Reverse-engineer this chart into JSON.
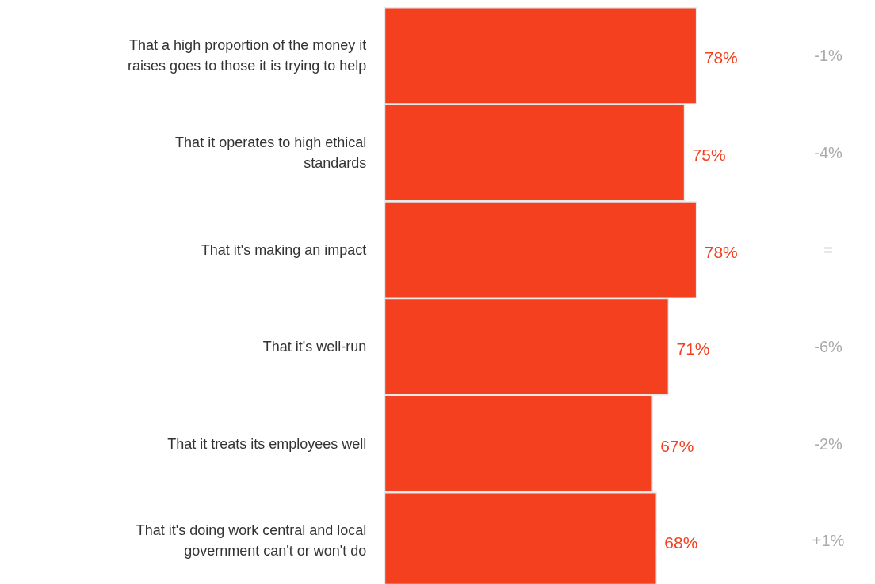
{
  "chart_data": {
    "type": "bar",
    "orientation": "horizontal",
    "categories": [
      "That a high proportion of the money it raises goes to those it is trying to help",
      "That it operates to high ethical standards",
      "That it's making an impact",
      "That it's well-run",
      "That it treats its employees well",
      "That it's doing work central and local government can't or won't do"
    ],
    "values": [
      78,
      75,
      78,
      71,
      67,
      68
    ],
    "color": "#f4401f",
    "value_labels": [
      "78%",
      "75%",
      "78%",
      "71%",
      "67%",
      "68%"
    ],
    "annotations": [
      "-1%",
      "-4%",
      "=",
      "-6%",
      "-2%",
      "+1%"
    ]
  }
}
